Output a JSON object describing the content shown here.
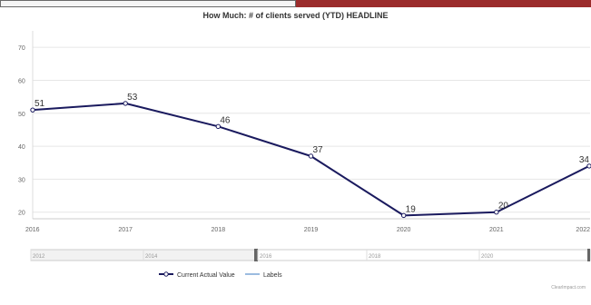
{
  "header": {
    "title": "How Much: # of clients served (YTD) HEADLINE"
  },
  "chart_data": {
    "type": "line",
    "title": "How Much: # of clients served (YTD) HEADLINE",
    "xlabel": "",
    "ylabel": "",
    "x": [
      "2016",
      "2017",
      "2018",
      "2019",
      "2020",
      "2021",
      "2022"
    ],
    "series": [
      {
        "name": "Current Actual Value",
        "values": [
          51,
          53,
          46,
          37,
          19,
          20,
          34
        ]
      }
    ],
    "yticks": [
      20,
      30,
      40,
      50,
      60,
      70
    ],
    "ylim": [
      18,
      75
    ],
    "grid": true,
    "legend": "bottom-center",
    "legend_entries": [
      "Current Actual Value",
      "Labels"
    ],
    "navigator_labels": [
      "2012",
      "2014",
      "2016",
      "2018",
      "2020"
    ]
  },
  "footer": {
    "credit": "ClearImpact.com"
  },
  "colors": {
    "line": "#1a1a5e",
    "labels_line": "#7aa6d6",
    "grid": "#e6e6e6",
    "axis_text": "#666666",
    "accent_bar": "#9b2c2c"
  }
}
